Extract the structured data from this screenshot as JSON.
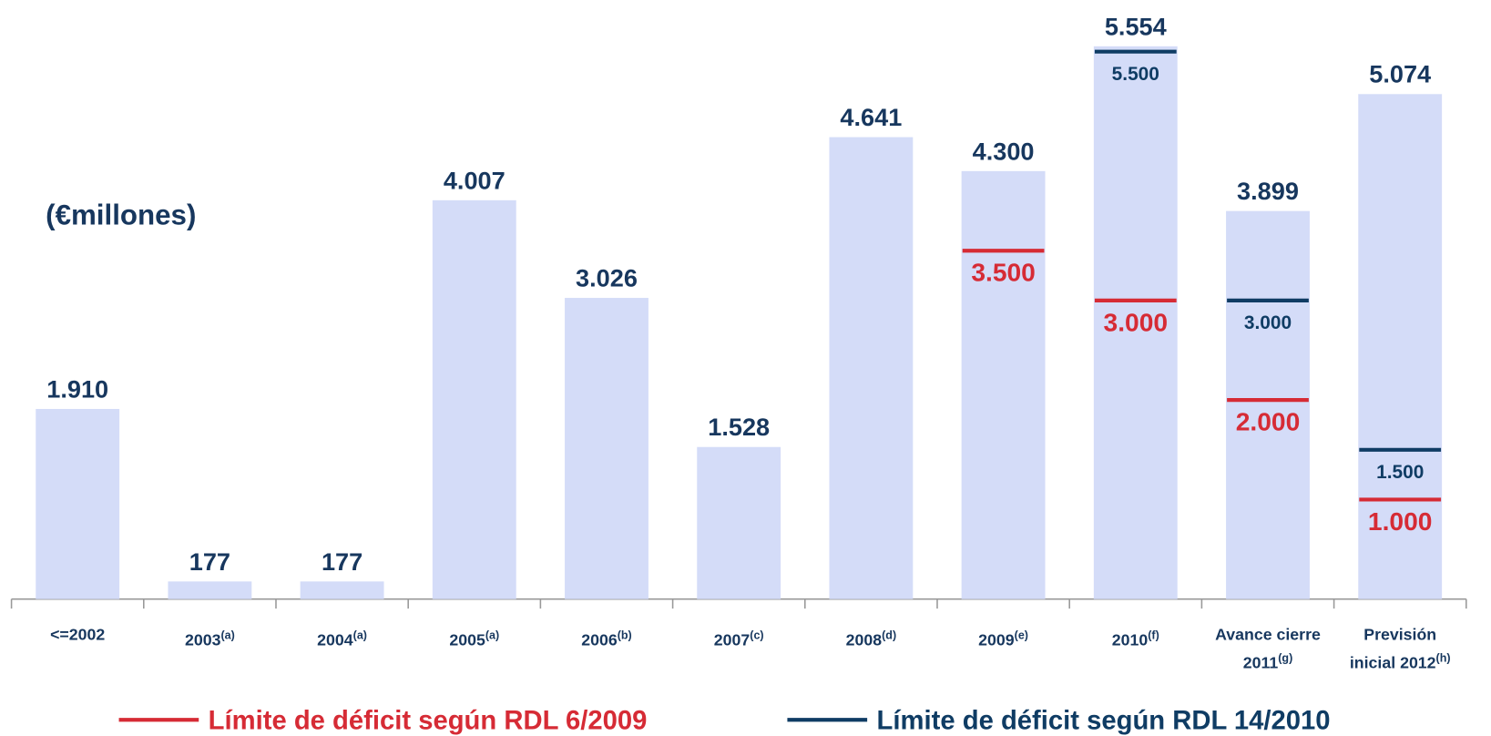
{
  "chart_data": {
    "type": "bar",
    "unit_label": "(€millones)",
    "categories": [
      "<=2002",
      "2003",
      "2004",
      "2005",
      "2006",
      "2007",
      "2008",
      "2009",
      "2010",
      "Avance cierre 2011",
      "Previsión inicial 2012"
    ],
    "category_notes": [
      null,
      "(a)",
      "(a)",
      "(a)",
      "(b)",
      "(c)",
      "(d)",
      "(e)",
      "(f)",
      "(g)",
      "(h)"
    ],
    "values": [
      1910,
      177,
      177,
      4007,
      3026,
      1528,
      4641,
      4300,
      5554,
      3899,
      5074
    ],
    "value_labels": [
      "1.910",
      "177",
      "177",
      "4.007",
      "3.026",
      "1.528",
      "4.641",
      "4.300",
      "5.554",
      "3.899",
      "5.074"
    ],
    "color": "#d4dcf8",
    "ylim": [
      0,
      6000
    ],
    "limits": [
      {
        "name": "Límite de déficit según  RDL 6/2009",
        "color": "#d62b35",
        "values": [
          null,
          null,
          null,
          null,
          null,
          null,
          null,
          3500,
          3000,
          2000,
          1000
        ],
        "value_labels": [
          null,
          null,
          null,
          null,
          null,
          null,
          null,
          "3.500",
          "3.000",
          "2.000",
          "1.000"
        ]
      },
      {
        "name": "Límite de déficit según  RDL 14/2010",
        "color": "#0f3c64",
        "values": [
          null,
          null,
          null,
          null,
          null,
          null,
          null,
          null,
          5500,
          3000,
          1500
        ],
        "value_labels": [
          null,
          null,
          null,
          null,
          null,
          null,
          null,
          null,
          "5.500",
          "3.000",
          "1.500"
        ]
      }
    ]
  }
}
